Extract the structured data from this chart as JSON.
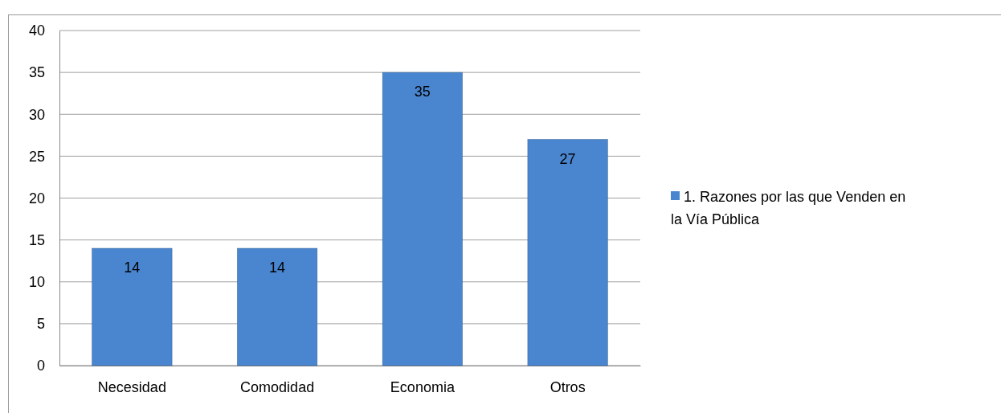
{
  "chart_data": {
    "type": "bar",
    "categories": [
      "Necesidad",
      "Comodidad",
      "Economia",
      "Otros"
    ],
    "series": [
      {
        "name": "1. Razones por las que Venden en la Vía Pública",
        "color": "#4a86d0",
        "values": [
          14,
          14,
          35,
          27
        ]
      }
    ],
    "ylim": [
      0,
      40
    ],
    "yticks": [
      0,
      5,
      10,
      15,
      20,
      25,
      30,
      35,
      40
    ],
    "grid": "y",
    "legend": "right",
    "data_labels": true
  }
}
